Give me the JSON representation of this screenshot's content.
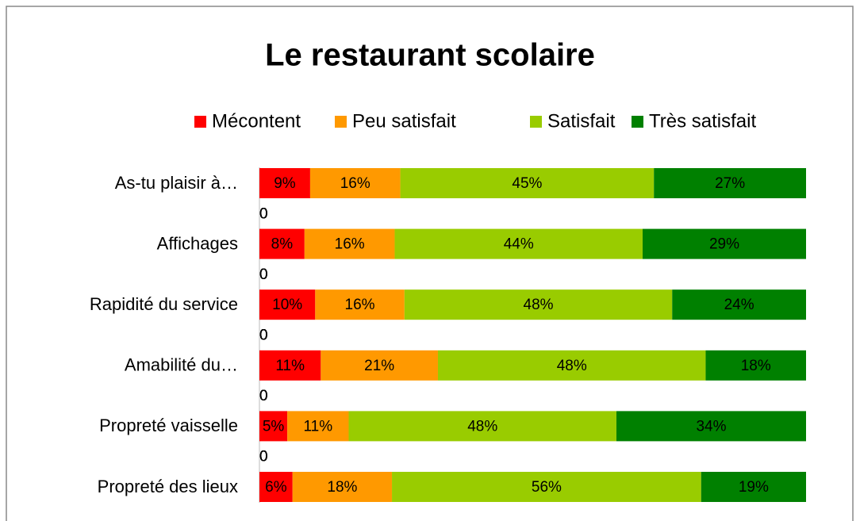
{
  "chart_data": {
    "type": "stacked-bar-100",
    "title": "Le restaurant scolaire",
    "categories": [
      "As-tu plaisir à…",
      null,
      "Affichages",
      null,
      "Rapidité du service",
      null,
      "Amabilité du…",
      null,
      "Propreté vaisselle",
      null,
      "Propreté des lieux"
    ],
    "series": [
      {
        "name": "Mécontent",
        "color": "#ff0000",
        "values": [
          9,
          0,
          8,
          0,
          10,
          0,
          11,
          0,
          5,
          0,
          6
        ],
        "value_labels": [
          "9%",
          "0",
          "8%",
          "0",
          "10%",
          "0",
          "11%",
          "0",
          "5%",
          "0",
          "6%"
        ]
      },
      {
        "name": "Peu satisfait",
        "color": "#ff9900",
        "values": [
          16,
          0,
          16,
          0,
          16,
          0,
          21,
          0,
          11,
          0,
          18
        ],
        "value_labels": [
          "16%",
          "0",
          "16%",
          "0",
          "16%",
          "0",
          "21%",
          "0",
          "11%",
          "0",
          "18%"
        ]
      },
      {
        "name": "Satisfait",
        "color": "#99cc00",
        "values": [
          45,
          0,
          44,
          0,
          48,
          0,
          48,
          0,
          48,
          0,
          56
        ],
        "value_labels": [
          "45%",
          "0",
          "44%",
          "0",
          "48%",
          "0",
          "48%",
          "0",
          "48%",
          "0",
          "56%"
        ]
      },
      {
        "name": "Très satisfait",
        "color": "#008000",
        "values": [
          27,
          0,
          29,
          0,
          24,
          0,
          18,
          0,
          34,
          0,
          19
        ],
        "value_labels": [
          "27%",
          "0",
          "29%",
          "0",
          "24%",
          "0",
          "18%",
          "0",
          "34%",
          "0",
          "19%"
        ]
      }
    ]
  }
}
